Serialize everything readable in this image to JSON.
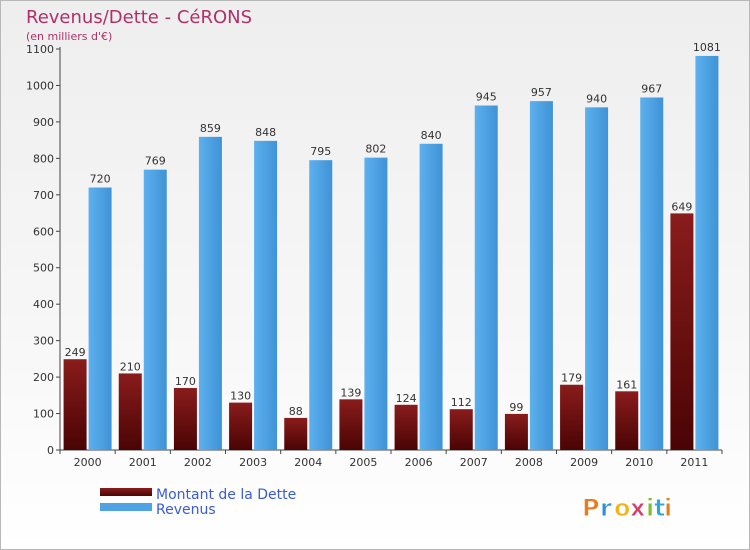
{
  "chart_data": {
    "type": "bar",
    "title": "Revenus/Dette - CéRONS",
    "subtitle": "(en milliers d'€)",
    "categories": [
      "2000",
      "2001",
      "2002",
      "2003",
      "2004",
      "2005",
      "2006",
      "2007",
      "2008",
      "2009",
      "2010",
      "2011"
    ],
    "series": [
      {
        "name": "Montant de la Dette",
        "color": "#7a1212",
        "values": [
          249,
          210,
          170,
          130,
          88,
          139,
          124,
          112,
          99,
          179,
          161,
          649
        ]
      },
      {
        "name": "Revenus",
        "color": "#4fa3e4",
        "values": [
          720,
          769,
          859,
          848,
          795,
          802,
          840,
          945,
          957,
          940,
          967,
          1081
        ]
      }
    ],
    "ylim": [
      0,
      1100
    ],
    "yticks": [
      0,
      100,
      200,
      300,
      400,
      500,
      600,
      700,
      800,
      900,
      1000,
      1100
    ],
    "xlabel": "",
    "ylabel": "",
    "grid": false,
    "legend": "bottom-left"
  },
  "brand": {
    "letters": [
      "P",
      "r",
      "o",
      "x",
      "i",
      "t",
      "i"
    ],
    "colors": [
      "#e87d1e",
      "#2f8fd8",
      "#f2b417",
      "#d93a6a",
      "#7cbf2a",
      "#2fa6d6",
      "#e87d1e"
    ]
  }
}
